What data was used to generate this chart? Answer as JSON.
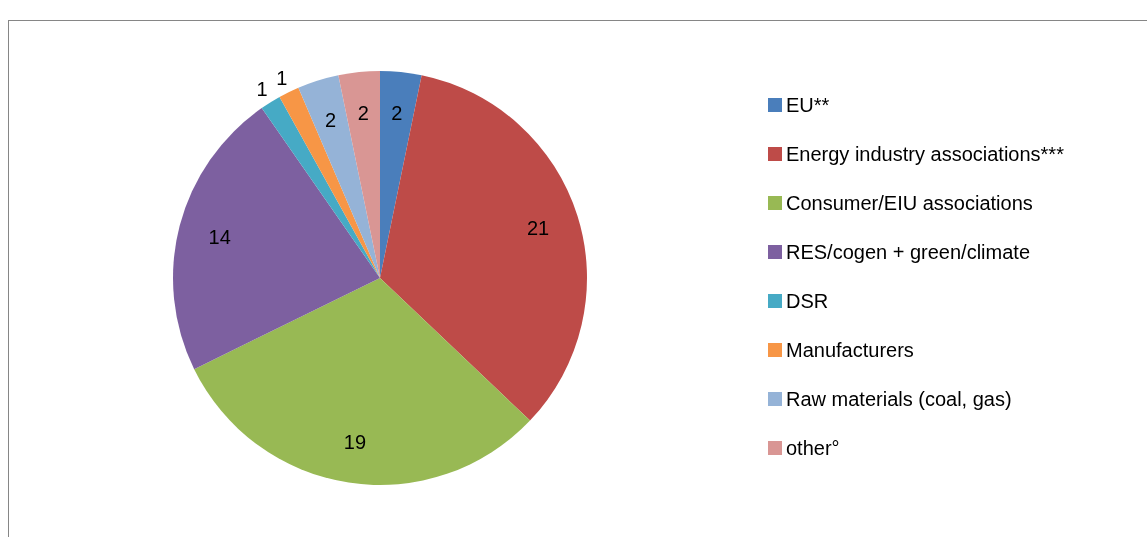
{
  "chart_data": {
    "type": "pie",
    "categories": [
      "EU**",
      "Energy industry associations***",
      "Consumer/EIU associations",
      "RES/cogen + green/climate",
      "DSR",
      "Manufacturers",
      "Raw materials (coal, gas)",
      "other°"
    ],
    "values": [
      2,
      21,
      19,
      14,
      1,
      1,
      2,
      2
    ],
    "colors": [
      "#4a7ebb",
      "#be4b48",
      "#98b954",
      "#7d60a0",
      "#46aac5",
      "#f79646",
      "#95b3d7",
      "#d99694"
    ],
    "data_labels": true,
    "legend": "right"
  }
}
